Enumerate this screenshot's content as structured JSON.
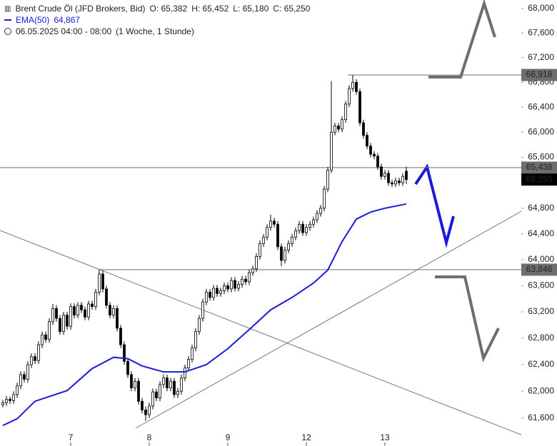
{
  "header": {
    "instrument": "Brent Crude Öl (JFD Brokers, Bid)",
    "open": "O: 65,382",
    "high": "H: 65,452",
    "low": "L: 65,180",
    "close": "C: 65,250",
    "indicator": "EMA(50)",
    "indicator_value": "64,867",
    "date": "06.05.2025 04:00 - 08:00",
    "period": "(1 Woche, 1 Stunde)"
  },
  "chart_data": {
    "type": "candlestick",
    "log_scale": true,
    "categories": [
      null,
      null,
      null,
      null,
      null,
      null,
      null,
      null,
      null,
      null,
      null,
      null,
      null,
      null,
      null,
      null,
      null,
      null,
      null,
      "7",
      null,
      null,
      null,
      null,
      null,
      null,
      null,
      null,
      null,
      null,
      null,
      null,
      null,
      null,
      null,
      null,
      null,
      null,
      null,
      null,
      null,
      "8",
      null,
      null,
      null,
      null,
      null,
      null,
      null,
      null,
      null,
      null,
      null,
      null,
      null,
      null,
      null,
      null,
      null,
      null,
      null,
      null,
      null,
      "9",
      null,
      null,
      null,
      null,
      null,
      null,
      null,
      null,
      null,
      null,
      null,
      null,
      null,
      null,
      null,
      null,
      null,
      null,
      null,
      null,
      null,
      "12",
      null,
      null,
      null,
      null,
      null,
      null,
      null,
      null,
      null,
      null,
      null,
      null,
      null,
      null,
      null,
      null,
      null,
      null,
      null,
      null,
      null,
      "13",
      null,
      null,
      null,
      null,
      null,
      null
    ],
    "series": [
      {
        "name": "Brent Crude Öl",
        "color": "#000000",
        "values": [
          [
            61800,
            61870,
            61760,
            61830
          ],
          [
            61830,
            61930,
            61780,
            61880
          ],
          [
            61880,
            61920,
            61810,
            61860
          ],
          [
            61860,
            62000,
            61810,
            61950
          ],
          [
            61950,
            62130,
            61900,
            62080
          ],
          [
            62080,
            62300,
            62030,
            62250
          ],
          [
            62250,
            62300,
            62130,
            62180
          ],
          [
            62180,
            62450,
            62130,
            62400
          ],
          [
            62400,
            62570,
            62350,
            62520
          ],
          [
            62520,
            62570,
            62410,
            62460
          ],
          [
            62460,
            62750,
            62410,
            62700
          ],
          [
            62700,
            62900,
            62650,
            62850
          ],
          [
            62850,
            62900,
            62730,
            62780
          ],
          [
            62780,
            63100,
            62730,
            63050
          ],
          [
            63050,
            63320,
            63000,
            63250
          ],
          [
            63250,
            63300,
            63050,
            63100
          ],
          [
            63100,
            63150,
            62850,
            62900
          ],
          [
            62900,
            63200,
            62850,
            63150
          ],
          [
            63150,
            63200,
            62930,
            62980
          ],
          [
            62980,
            63330,
            62930,
            63280
          ],
          [
            63280,
            63330,
            63100,
            63150
          ],
          [
            63150,
            63350,
            63100,
            63300
          ],
          [
            63300,
            63350,
            63180,
            63230
          ],
          [
            63230,
            63280,
            63070,
            63120
          ],
          [
            63120,
            63370,
            63070,
            63320
          ],
          [
            63320,
            63370,
            63230,
            63280
          ],
          [
            63280,
            63550,
            63230,
            63500
          ],
          [
            63500,
            63850,
            63450,
            63780
          ],
          [
            63780,
            63830,
            63500,
            63550
          ],
          [
            63550,
            63600,
            63250,
            63300
          ],
          [
            63300,
            63350,
            63100,
            63150
          ],
          [
            63150,
            63300,
            63100,
            63250
          ],
          [
            63250,
            63300,
            62900,
            62950
          ],
          [
            62950,
            63000,
            62650,
            62700
          ],
          [
            62700,
            62750,
            62400,
            62450
          ],
          [
            62450,
            62500,
            62200,
            62250
          ],
          [
            62250,
            62300,
            62000,
            62050
          ],
          [
            62050,
            62200,
            62000,
            62150
          ],
          [
            62150,
            62200,
            61800,
            61850
          ],
          [
            61850,
            61900,
            61670,
            61720
          ],
          [
            61720,
            61770,
            61560,
            61650
          ],
          [
            61650,
            61830,
            61600,
            61780
          ],
          [
            61780,
            62040,
            61730,
            61990
          ],
          [
            61990,
            62040,
            61850,
            61900
          ],
          [
            61900,
            62150,
            61850,
            62100
          ],
          [
            62100,
            62250,
            62050,
            62200
          ],
          [
            62200,
            62250,
            62000,
            62050
          ],
          [
            62050,
            62200,
            62000,
            62150
          ],
          [
            62150,
            62200,
            61900,
            61950
          ],
          [
            61950,
            62050,
            61900,
            62000
          ],
          [
            62000,
            62250,
            61950,
            62200
          ],
          [
            62200,
            62400,
            62150,
            62350
          ],
          [
            62350,
            62530,
            62300,
            62480
          ],
          [
            62480,
            62700,
            62430,
            62650
          ],
          [
            62650,
            62950,
            62600,
            62900
          ],
          [
            62900,
            63150,
            62850,
            63100
          ],
          [
            63100,
            63400,
            63050,
            63350
          ],
          [
            63350,
            63550,
            63300,
            63500
          ],
          [
            63500,
            63550,
            63370,
            63420
          ],
          [
            63420,
            63610,
            63370,
            63560
          ],
          [
            63560,
            63610,
            63430,
            63480
          ],
          [
            63480,
            63570,
            63430,
            63520
          ],
          [
            63520,
            63650,
            63470,
            63600
          ],
          [
            63600,
            63650,
            63500,
            63550
          ],
          [
            63550,
            63730,
            63500,
            63680
          ],
          [
            63680,
            63730,
            63510,
            63560
          ],
          [
            63560,
            63670,
            63510,
            63620
          ],
          [
            63620,
            63750,
            63570,
            63700
          ],
          [
            63700,
            63750,
            63610,
            63660
          ],
          [
            63660,
            63850,
            63610,
            63800
          ],
          [
            63800,
            63910,
            63750,
            63860
          ],
          [
            63860,
            64100,
            63810,
            64050
          ],
          [
            64050,
            64300,
            64000,
            64250
          ],
          [
            64250,
            64400,
            64200,
            64350
          ],
          [
            64350,
            64550,
            64300,
            64500
          ],
          [
            64500,
            64700,
            64450,
            64600
          ],
          [
            64600,
            64650,
            64500,
            64550
          ],
          [
            64550,
            64600,
            64150,
            64200
          ],
          [
            64200,
            64250,
            63900,
            63990
          ],
          [
            63990,
            64200,
            63940,
            64150
          ],
          [
            64150,
            64300,
            64100,
            64250
          ],
          [
            64250,
            64400,
            64200,
            64350
          ],
          [
            64350,
            64500,
            64300,
            64450
          ],
          [
            64450,
            64600,
            64400,
            64550
          ],
          [
            64550,
            64600,
            64370,
            64420
          ],
          [
            64420,
            64550,
            64370,
            64500
          ],
          [
            64500,
            64600,
            64450,
            64550
          ],
          [
            64550,
            64670,
            64500,
            64620
          ],
          [
            64620,
            64770,
            64570,
            64720
          ],
          [
            64720,
            64850,
            64670,
            64800
          ],
          [
            64800,
            65150,
            64750,
            65100
          ],
          [
            65100,
            65450,
            65050,
            65400
          ],
          [
            65400,
            66820,
            65350,
            66000
          ],
          [
            66000,
            66150,
            65950,
            66100
          ],
          [
            66100,
            66150,
            66000,
            66050
          ],
          [
            66050,
            66250,
            66000,
            66200
          ],
          [
            66200,
            66500,
            66150,
            66450
          ],
          [
            66450,
            66750,
            66400,
            66700
          ],
          [
            66700,
            66918,
            66650,
            66800
          ],
          [
            66800,
            66850,
            66600,
            66650
          ],
          [
            66650,
            66700,
            66100,
            66150
          ],
          [
            66150,
            66200,
            65900,
            65950
          ],
          [
            65950,
            66000,
            65730,
            65780
          ],
          [
            65780,
            65830,
            65600,
            65650
          ],
          [
            65650,
            65700,
            65570,
            65620
          ],
          [
            65620,
            65670,
            65400,
            65450
          ],
          [
            65450,
            65500,
            65250,
            65300
          ],
          [
            65300,
            65400,
            65250,
            65350
          ],
          [
            65350,
            65400,
            65150,
            65200
          ],
          [
            65200,
            65250,
            65130,
            65180
          ],
          [
            65180,
            65280,
            65130,
            65230
          ],
          [
            65230,
            65280,
            65150,
            65200
          ],
          [
            65200,
            65350,
            65150,
            65300
          ],
          [
            65382,
            65452,
            65180,
            65250
          ]
        ]
      },
      {
        "name": "EMA(50)",
        "color": "#1a1adb",
        "x": [
          0,
          4,
          9,
          18,
          25,
          31,
          35,
          39,
          45,
          51,
          57,
          63,
          69,
          75,
          81,
          87,
          91,
          95,
          99,
          103,
          107,
          113
        ],
        "values": [
          61490,
          61590,
          61850,
          62010,
          62340,
          62510,
          62490,
          62380,
          62290,
          62290,
          62400,
          62640,
          62930,
          63230,
          63420,
          63640,
          63840,
          64280,
          64630,
          64740,
          64800,
          64867
        ]
      }
    ],
    "price_lines": [
      {
        "value": 66918,
        "label": "66,918",
        "color": "#6e6e6e"
      },
      {
        "value": 65438,
        "label": "65,438",
        "color": "#6e6e6e"
      },
      {
        "value": 63846,
        "label": "63,846",
        "color": "#6e6e6e"
      },
      {
        "value": 65250,
        "label": "65,250",
        "color": "#000000"
      }
    ],
    "ylim": [
      61450,
      68140
    ],
    "yticks": [
      {
        "value": 61600,
        "label": "61,600"
      },
      {
        "value": 62000,
        "label": "62,000"
      },
      {
        "value": 62400,
        "label": "62,400"
      },
      {
        "value": 62800,
        "label": "62,800"
      },
      {
        "value": 63200,
        "label": "63,200"
      },
      {
        "value": 63600,
        "label": "63,600"
      },
      {
        "value": 64000,
        "label": "64,000"
      },
      {
        "value": 64400,
        "label": "64,400"
      },
      {
        "value": 64800,
        "label": "64,800"
      },
      {
        "value": 65200,
        "label": "65,200"
      },
      {
        "value": 65600,
        "label": "65,600"
      },
      {
        "value": 66000,
        "label": "66,000"
      },
      {
        "value": 66400,
        "label": "66,400"
      },
      {
        "value": 66800,
        "label": "66,800"
      },
      {
        "value": 67200,
        "label": "67,200"
      },
      {
        "value": 67600,
        "label": "67,600"
      },
      {
        "value": 68000,
        "label": "68,000"
      }
    ]
  }
}
